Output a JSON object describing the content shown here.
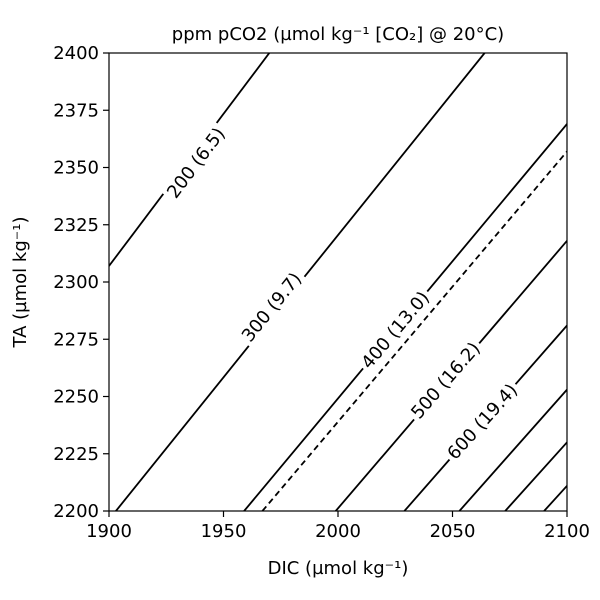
{
  "chart_data": {
    "type": "line",
    "title": "ppm pCO2 (µmol kg⁻¹ [CO₂] @ 20°C)",
    "xlabel": "DIC (µmol kg⁻¹)",
    "ylabel": "TA (µmol kg⁻¹)",
    "xlim": [
      1900,
      2100
    ],
    "ylim": [
      2200,
      2400
    ],
    "xticks": [
      1900,
      1950,
      2000,
      2050,
      2100
    ],
    "yticks": [
      2200,
      2225,
      2250,
      2275,
      2300,
      2325,
      2350,
      2375,
      2400
    ],
    "grid": false,
    "contours": [
      {
        "label": "200 (6.5)",
        "style": "solid",
        "points": [
          [
            1900,
            2307
          ],
          [
            1970,
            2400
          ]
        ],
        "label_at": [
          1938,
          2352
        ],
        "label_angle": 53
      },
      {
        "label": "300 (9.7)",
        "style": "solid",
        "points": [
          [
            1903,
            2200
          ],
          [
            2064,
            2400
          ]
        ],
        "label_at": [
          1971,
          2289
        ],
        "label_angle": 51
      },
      {
        "label": "400 (13.0)",
        "style": "solid",
        "points": [
          [
            1959,
            2200
          ],
          [
            2100,
            2369
          ]
        ],
        "label_at": [
          2025,
          2279
        ],
        "label_angle": 50
      },
      {
        "label": "",
        "style": "dashed",
        "points": [
          [
            1967,
            2200
          ],
          [
            2100,
            2357
          ]
        ]
      },
      {
        "label": "500 (16.2)",
        "style": "solid",
        "points": [
          [
            1999,
            2200
          ],
          [
            2100,
            2318
          ]
        ],
        "label_at": [
          2047,
          2257
        ],
        "label_angle": 49
      },
      {
        "label": "600 (19.4)",
        "style": "solid",
        "points": [
          [
            2029,
            2200
          ],
          [
            2100,
            2281
          ]
        ],
        "label_at": [
          2063,
          2239
        ],
        "label_angle": 48
      },
      {
        "label": "",
        "style": "solid",
        "points": [
          [
            2053,
            2200
          ],
          [
            2100,
            2253
          ]
        ]
      },
      {
        "label": "",
        "style": "solid",
        "points": [
          [
            2073,
            2200
          ],
          [
            2100,
            2230
          ]
        ]
      },
      {
        "label": "",
        "style": "solid",
        "points": [
          [
            2090,
            2200
          ],
          [
            2100,
            2211
          ]
        ]
      }
    ]
  }
}
